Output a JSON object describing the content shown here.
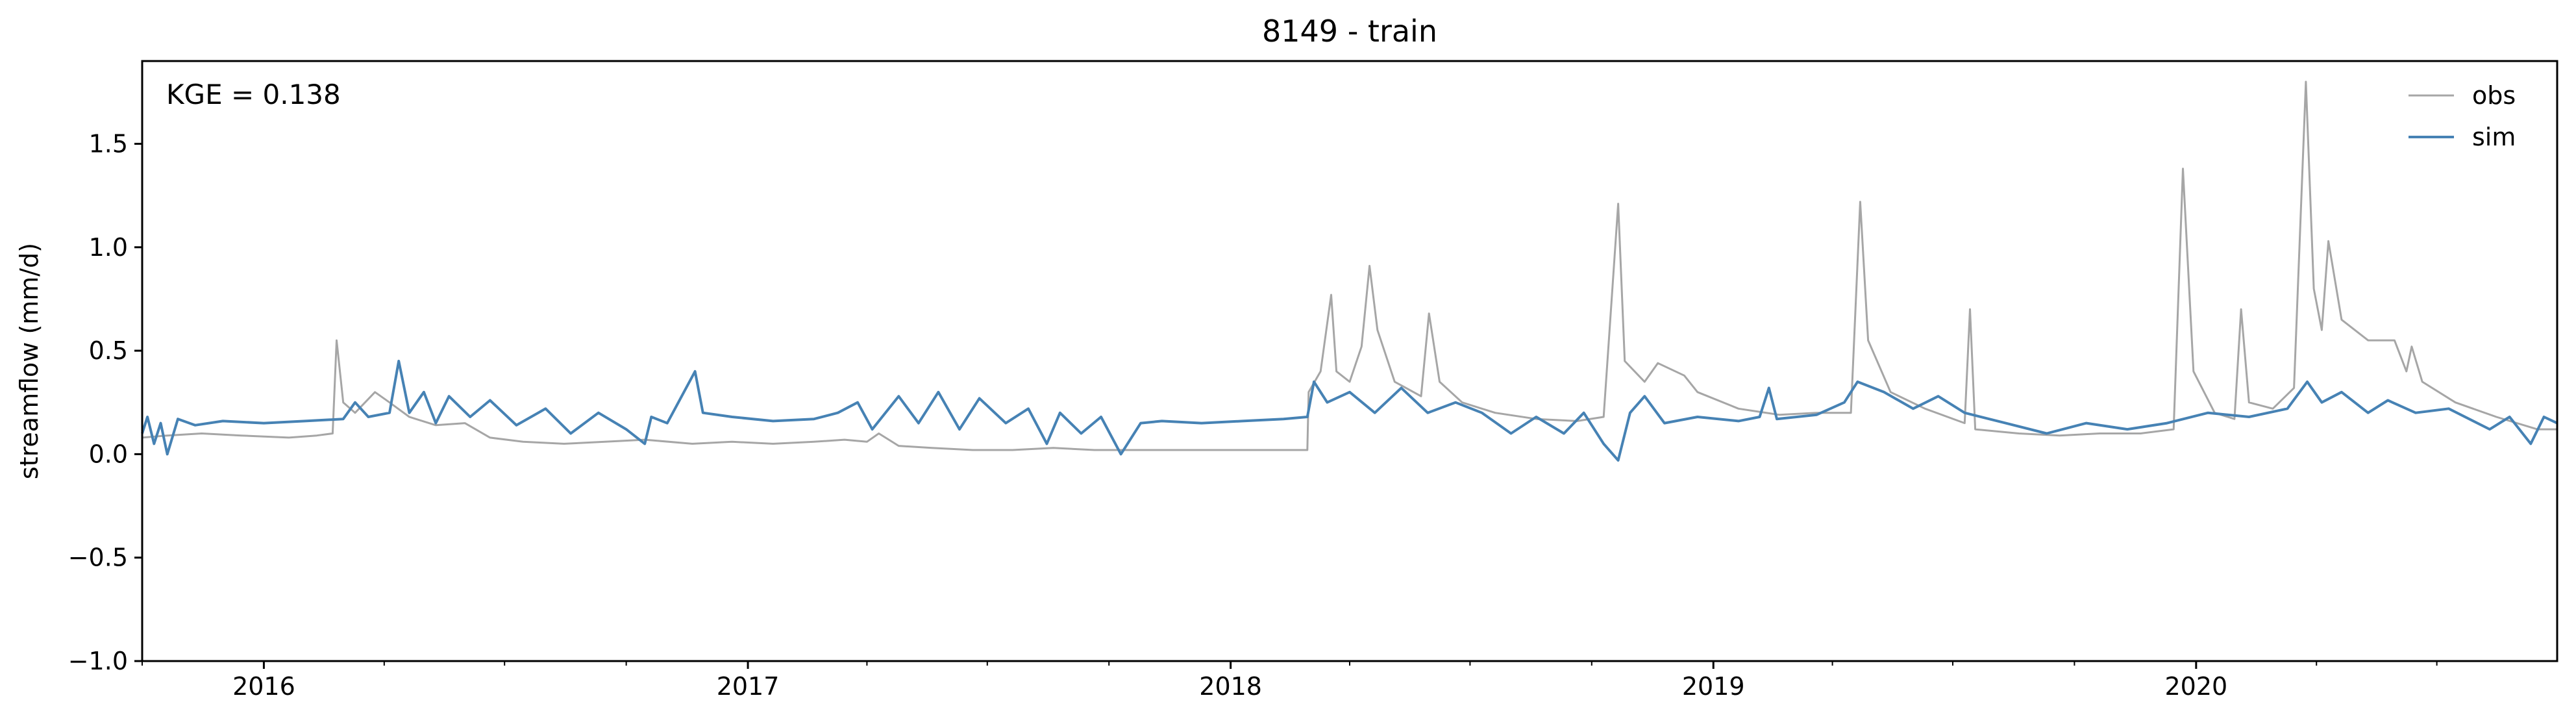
{
  "chart_data": {
    "type": "line",
    "title": "8149 - train",
    "xlabel": "",
    "ylabel": "streamflow (mm/d)",
    "annotation": "KGE = 0.138",
    "xlim": [
      "2015-10-01",
      "2020-09-30"
    ],
    "ylim": [
      -1.0,
      1.9
    ],
    "x_ticks": [
      "2016",
      "2017",
      "2018",
      "2019",
      "2020"
    ],
    "y_ticks": [
      "−1.0",
      "−0.5",
      "0.0",
      "0.5",
      "1.0",
      "1.5"
    ],
    "grid": false,
    "legend_position": "top-right",
    "series": [
      {
        "name": "obs",
        "color": "#a6a6a6",
        "points": [
          [
            "2015-10-01",
            0.08
          ],
          [
            "2015-10-20",
            0.09
          ],
          [
            "2015-11-15",
            0.1
          ],
          [
            "2015-12-15",
            0.09
          ],
          [
            "2016-01-20",
            0.08
          ],
          [
            "2016-02-10",
            0.09
          ],
          [
            "2016-02-22",
            0.1
          ],
          [
            "2016-02-25",
            0.55
          ],
          [
            "2016-03-01",
            0.25
          ],
          [
            "2016-03-10",
            0.2
          ],
          [
            "2016-03-25",
            0.3
          ],
          [
            "2016-04-05",
            0.25
          ],
          [
            "2016-04-20",
            0.18
          ],
          [
            "2016-05-10",
            0.14
          ],
          [
            "2016-06-01",
            0.15
          ],
          [
            "2016-06-20",
            0.08
          ],
          [
            "2016-07-15",
            0.06
          ],
          [
            "2016-08-15",
            0.05
          ],
          [
            "2016-09-15",
            0.06
          ],
          [
            "2016-10-15",
            0.07
          ],
          [
            "2016-11-20",
            0.05
          ],
          [
            "2016-12-20",
            0.06
          ],
          [
            "2017-01-20",
            0.05
          ],
          [
            "2017-02-20",
            0.06
          ],
          [
            "2017-03-15",
            0.07
          ],
          [
            "2017-04-01",
            0.06
          ],
          [
            "2017-04-10",
            0.1
          ],
          [
            "2017-04-25",
            0.04
          ],
          [
            "2017-05-20",
            0.03
          ],
          [
            "2017-06-20",
            0.02
          ],
          [
            "2017-07-20",
            0.02
          ],
          [
            "2017-08-20",
            0.03
          ],
          [
            "2017-09-20",
            0.02
          ],
          [
            "2017-10-20",
            0.02
          ],
          [
            "2017-11-20",
            0.02
          ],
          [
            "2017-12-20",
            0.02
          ],
          [
            "2018-01-20",
            0.02
          ],
          [
            "2018-02-10",
            0.02
          ],
          [
            "2018-02-28",
            0.02
          ],
          [
            "2018-03-01",
            0.3
          ],
          [
            "2018-03-10",
            0.4
          ],
          [
            "2018-03-18",
            0.77
          ],
          [
            "2018-03-22",
            0.4
          ],
          [
            "2018-04-01",
            0.35
          ],
          [
            "2018-04-10",
            0.52
          ],
          [
            "2018-04-16",
            0.91
          ],
          [
            "2018-04-22",
            0.6
          ],
          [
            "2018-05-05",
            0.35
          ],
          [
            "2018-05-25",
            0.28
          ],
          [
            "2018-05-31",
            0.68
          ],
          [
            "2018-06-08",
            0.35
          ],
          [
            "2018-06-25",
            0.25
          ],
          [
            "2018-07-20",
            0.2
          ],
          [
            "2018-08-20",
            0.17
          ],
          [
            "2018-09-20",
            0.16
          ],
          [
            "2018-10-10",
            0.18
          ],
          [
            "2018-10-21",
            1.21
          ],
          [
            "2018-10-26",
            0.45
          ],
          [
            "2018-11-10",
            0.35
          ],
          [
            "2018-11-20",
            0.44
          ],
          [
            "2018-12-10",
            0.38
          ],
          [
            "2018-12-20",
            0.3
          ],
          [
            "2019-01-20",
            0.22
          ],
          [
            "2019-02-20",
            0.19
          ],
          [
            "2019-03-20",
            0.2
          ],
          [
            "2019-04-15",
            0.2
          ],
          [
            "2019-04-22",
            1.22
          ],
          [
            "2019-04-28",
            0.55
          ],
          [
            "2019-05-15",
            0.3
          ],
          [
            "2019-06-10",
            0.22
          ],
          [
            "2019-07-10",
            0.15
          ],
          [
            "2019-07-14",
            0.7
          ],
          [
            "2019-07-18",
            0.12
          ],
          [
            "2019-08-20",
            0.1
          ],
          [
            "2019-09-20",
            0.09
          ],
          [
            "2019-10-20",
            0.1
          ],
          [
            "2019-11-20",
            0.1
          ],
          [
            "2019-12-15",
            0.12
          ],
          [
            "2019-12-22",
            1.38
          ],
          [
            "2019-12-30",
            0.4
          ],
          [
            "2020-01-15",
            0.2
          ],
          [
            "2020-01-30",
            0.17
          ],
          [
            "2020-02-04",
            0.7
          ],
          [
            "2020-02-10",
            0.25
          ],
          [
            "2020-02-28",
            0.22
          ],
          [
            "2020-03-15",
            0.32
          ],
          [
            "2020-03-24",
            1.8
          ],
          [
            "2020-03-30",
            0.8
          ],
          [
            "2020-04-05",
            0.6
          ],
          [
            "2020-04-10",
            1.03
          ],
          [
            "2020-04-20",
            0.65
          ],
          [
            "2020-05-10",
            0.55
          ],
          [
            "2020-05-30",
            0.55
          ],
          [
            "2020-06-08",
            0.4
          ],
          [
            "2020-06-12",
            0.52
          ],
          [
            "2020-06-20",
            0.35
          ],
          [
            "2020-07-15",
            0.25
          ],
          [
            "2020-08-15",
            0.18
          ],
          [
            "2020-09-15",
            0.12
          ],
          [
            "2020-09-30",
            0.12
          ]
        ]
      },
      {
        "name": "sim",
        "color": "#4682b4",
        "points": [
          [
            "2015-10-01",
            0.1
          ],
          [
            "2015-10-05",
            0.18
          ],
          [
            "2015-10-10",
            0.05
          ],
          [
            "2015-10-15",
            0.15
          ],
          [
            "2015-10-20",
            0.0
          ],
          [
            "2015-10-28",
            0.17
          ],
          [
            "2015-11-10",
            0.14
          ],
          [
            "2015-12-01",
            0.16
          ],
          [
            "2016-01-01",
            0.15
          ],
          [
            "2016-02-01",
            0.16
          ],
          [
            "2016-03-01",
            0.17
          ],
          [
            "2016-03-10",
            0.25
          ],
          [
            "2016-03-20",
            0.18
          ],
          [
            "2016-04-05",
            0.2
          ],
          [
            "2016-04-12",
            0.45
          ],
          [
            "2016-04-20",
            0.2
          ],
          [
            "2016-05-01",
            0.3
          ],
          [
            "2016-05-10",
            0.15
          ],
          [
            "2016-05-20",
            0.28
          ],
          [
            "2016-06-05",
            0.18
          ],
          [
            "2016-06-20",
            0.26
          ],
          [
            "2016-07-10",
            0.14
          ],
          [
            "2016-08-01",
            0.22
          ],
          [
            "2016-08-20",
            0.1
          ],
          [
            "2016-09-10",
            0.2
          ],
          [
            "2016-10-01",
            0.12
          ],
          [
            "2016-10-15",
            0.05
          ],
          [
            "2016-10-20",
            0.18
          ],
          [
            "2016-11-01",
            0.15
          ],
          [
            "2016-11-22",
            0.4
          ],
          [
            "2016-11-28",
            0.2
          ],
          [
            "2016-12-20",
            0.18
          ],
          [
            "2017-01-20",
            0.16
          ],
          [
            "2017-02-20",
            0.17
          ],
          [
            "2017-03-10",
            0.2
          ],
          [
            "2017-03-25",
            0.25
          ],
          [
            "2017-04-05",
            0.12
          ],
          [
            "2017-04-25",
            0.28
          ],
          [
            "2017-05-10",
            0.15
          ],
          [
            "2017-05-25",
            0.3
          ],
          [
            "2017-06-10",
            0.12
          ],
          [
            "2017-06-25",
            0.27
          ],
          [
            "2017-07-15",
            0.15
          ],
          [
            "2017-08-01",
            0.22
          ],
          [
            "2017-08-15",
            0.05
          ],
          [
            "2017-08-25",
            0.2
          ],
          [
            "2017-09-10",
            0.1
          ],
          [
            "2017-09-25",
            0.18
          ],
          [
            "2017-10-10",
            0.0
          ],
          [
            "2017-10-25",
            0.15
          ],
          [
            "2017-11-10",
            0.16
          ],
          [
            "2017-12-10",
            0.15
          ],
          [
            "2018-01-10",
            0.16
          ],
          [
            "2018-02-10",
            0.17
          ],
          [
            "2018-02-28",
            0.18
          ],
          [
            "2018-03-05",
            0.35
          ],
          [
            "2018-03-15",
            0.25
          ],
          [
            "2018-04-01",
            0.3
          ],
          [
            "2018-04-20",
            0.2
          ],
          [
            "2018-05-10",
            0.32
          ],
          [
            "2018-05-30",
            0.2
          ],
          [
            "2018-06-20",
            0.25
          ],
          [
            "2018-07-10",
            0.2
          ],
          [
            "2018-08-01",
            0.1
          ],
          [
            "2018-08-20",
            0.18
          ],
          [
            "2018-09-10",
            0.1
          ],
          [
            "2018-09-25",
            0.2
          ],
          [
            "2018-10-10",
            0.05
          ],
          [
            "2018-10-21",
            -0.03
          ],
          [
            "2018-10-30",
            0.2
          ],
          [
            "2018-11-10",
            0.28
          ],
          [
            "2018-11-25",
            0.15
          ],
          [
            "2018-12-20",
            0.18
          ],
          [
            "2019-01-20",
            0.16
          ],
          [
            "2019-02-05",
            0.18
          ],
          [
            "2019-02-12",
            0.32
          ],
          [
            "2019-02-18",
            0.17
          ],
          [
            "2019-03-20",
            0.19
          ],
          [
            "2019-04-10",
            0.25
          ],
          [
            "2019-04-20",
            0.35
          ],
          [
            "2019-05-10",
            0.3
          ],
          [
            "2019-06-01",
            0.22
          ],
          [
            "2019-06-20",
            0.28
          ],
          [
            "2019-07-10",
            0.2
          ],
          [
            "2019-08-10",
            0.15
          ],
          [
            "2019-09-10",
            0.1
          ],
          [
            "2019-10-10",
            0.15
          ],
          [
            "2019-11-10",
            0.12
          ],
          [
            "2019-12-10",
            0.15
          ],
          [
            "2020-01-10",
            0.2
          ],
          [
            "2020-02-10",
            0.18
          ],
          [
            "2020-03-10",
            0.22
          ],
          [
            "2020-03-25",
            0.35
          ],
          [
            "2020-04-05",
            0.25
          ],
          [
            "2020-04-20",
            0.3
          ],
          [
            "2020-05-10",
            0.2
          ],
          [
            "2020-05-25",
            0.26
          ],
          [
            "2020-06-15",
            0.2
          ],
          [
            "2020-07-10",
            0.22
          ],
          [
            "2020-08-10",
            0.12
          ],
          [
            "2020-08-25",
            0.18
          ],
          [
            "2020-09-10",
            0.05
          ],
          [
            "2020-09-20",
            0.18
          ],
          [
            "2020-09-30",
            0.15
          ]
        ]
      }
    ]
  }
}
